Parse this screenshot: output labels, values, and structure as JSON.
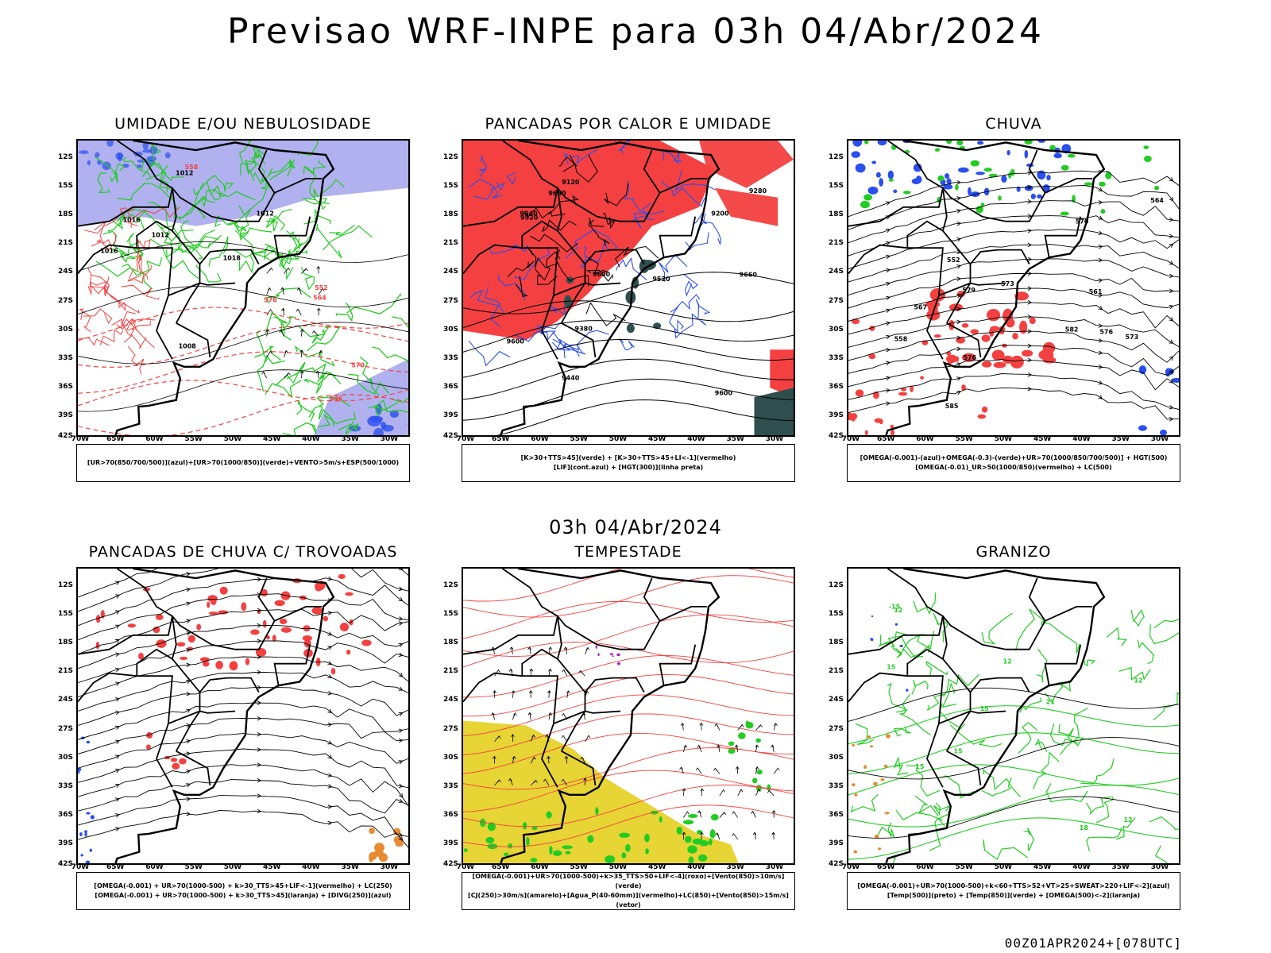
{
  "header": {
    "title": "Previsao WRF-INPE  para 03h 04/Abr/2024"
  },
  "middle": {
    "title": "03h 04/Abr/2024"
  },
  "footer": {
    "run": "00Z01APR2024+[078UTC]"
  },
  "axes": {
    "lat": [
      "12S",
      "15S",
      "18S",
      "21S",
      "24S",
      "27S",
      "30S",
      "33S",
      "36S",
      "39S",
      "42S"
    ],
    "lon": [
      "70W",
      "65W",
      "60W",
      "55W",
      "50W",
      "45W",
      "40W",
      "35W",
      "30W"
    ]
  },
  "colors": {
    "blue": "#2a4ff0",
    "lavender": "#a9a9ee",
    "green": "#22cc22",
    "red": "#f44040",
    "yellow": "#e6d22a",
    "darkteal": "#2f4f4f",
    "orange": "#e88a30",
    "purple": "#a020c0"
  },
  "panels": [
    {
      "id": "umidade",
      "title": "UMIDADE E/OU NEBULOSIDADE",
      "legend": [
        "[UR>70(850/700/500)](azul)+[UR>70(1000/850)](verde)+VENTO>5m/s+ESP(500/1000)"
      ],
      "contour_labels": [
        "1012",
        "1016",
        "1018",
        "1012",
        "1008",
        "1012",
        "1016",
        "576",
        "570",
        "564",
        "558",
        "552",
        "546"
      ]
    },
    {
      "id": "pancadas-calor",
      "title": "PANCADAS POR CALOR E UMIDADE",
      "legend": [
        "[K>30+TTS>45](verde) + [K>30+TTS>45+LI<-1](vermelho)",
        "[LIF](cont.azul) + [HGT(300)](linha preta)"
      ],
      "contour_labels": [
        "9680",
        "9660",
        "9600",
        "9600",
        "9600",
        "9520",
        "9520",
        "9440",
        "9380",
        "9280",
        "9200",
        "9120",
        "9040"
      ]
    },
    {
      "id": "chuva",
      "title": "CHUVA",
      "legend": [
        "[OMEGA(-0.001)-(azul)+OMEGA(-0.3)-(verde)+UR>70(1000/850/700/500)] + HGT(500)",
        "[OMEGA(-0.01)_UR>50(1000/850)(vermelho) + LC(500)"
      ],
      "contour_labels": [
        "585",
        "582",
        "579",
        "576",
        "573",
        "570",
        "567",
        "564",
        "561",
        "558",
        "552",
        "576",
        "573"
      ]
    },
    {
      "id": "pancadas-trovoadas",
      "title": "PANCADAS DE CHUVA C/ TROVOADAS",
      "legend": [
        "[OMEGA(-0.001) + UR>70(1000-500) + k>30_TTS>45+LIF<-1](vermelho) + LC(250)",
        "[OMEGA(-0.001) + UR>70(1000-500) + k>30_TTS>45](laranja) + [DIVG(250)](azul)"
      ],
      "contour_labels": []
    },
    {
      "id": "tempestade",
      "title": "TEMPESTADE",
      "legend": [
        "[OMEGA(-0.001)+UR>70(1000-500)+k>35_TTS>50+LIF<-4](roxo)+[Vento(850)>10m/s](verde)",
        "[CJ(250)>30m/s](amarelo)+[Agua_P(40-60mm)](vermelho)+LC(850)+[Vento(850)>15m/s](vetor)"
      ],
      "contour_labels": []
    },
    {
      "id": "granizo",
      "title": "GRANIZO",
      "legend": [
        "[OMEGA(-0.001)+UR>70(1000-500)+k<60+TTS>52+VT>25+SWEAT>220+LIF<-2](azul)",
        "[Temp(500)](preto) + [Temp(850)](verde) + [OMEGA(500)<-2](laranja)"
      ],
      "contour_labels": [
        "15",
        "15",
        "15",
        "12",
        "15",
        "12",
        "12",
        "-15",
        "12",
        "21",
        "18"
      ]
    }
  ]
}
